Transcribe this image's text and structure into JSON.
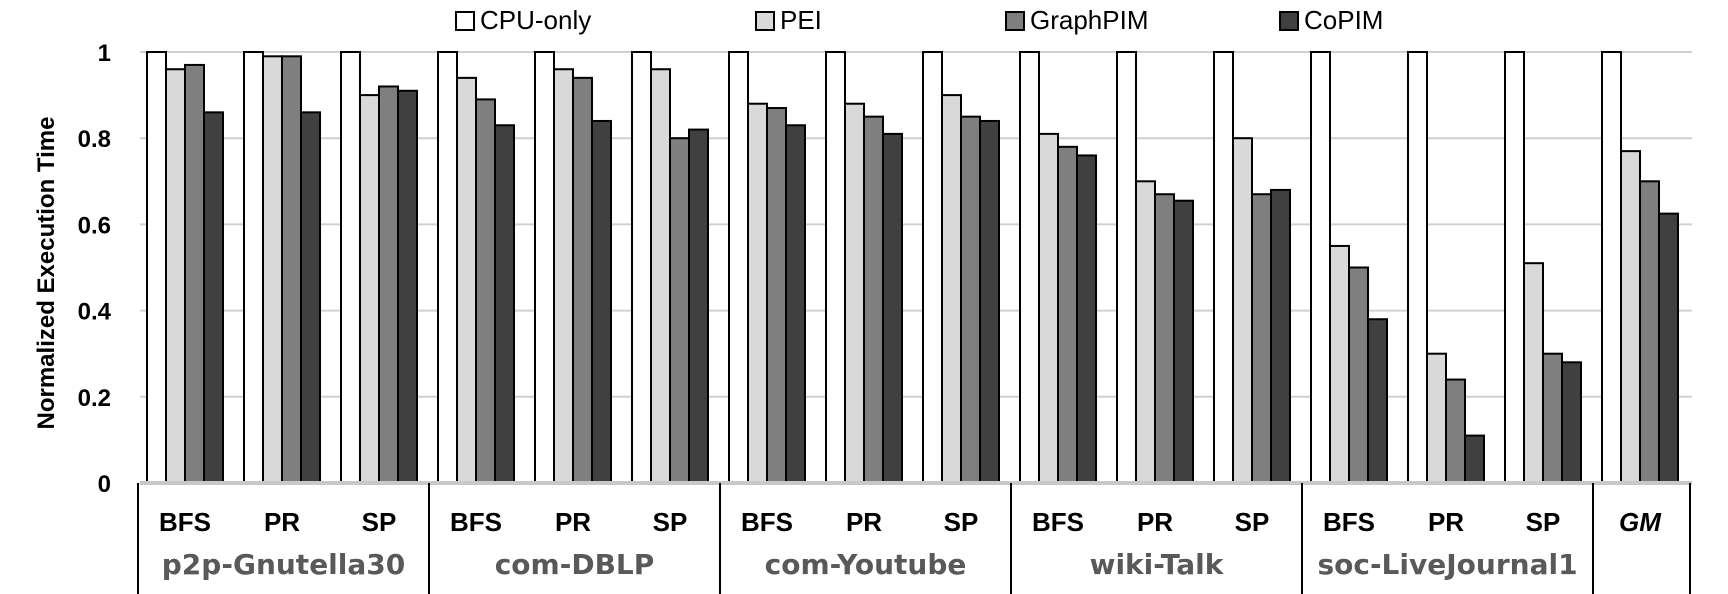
{
  "chart_data": {
    "type": "bar",
    "title": "",
    "xlabel": "",
    "ylabel": "Normalized Execution Time",
    "ylim": [
      0,
      1
    ],
    "yticks": [
      "0",
      "0.2",
      "0.4",
      "0.6",
      "0.8",
      "1"
    ],
    "grid": true,
    "legend_position": "top",
    "groups": [
      {
        "name": "p2p-Gnutella30",
        "categories": [
          "BFS",
          "PR",
          "SP"
        ]
      },
      {
        "name": "com-DBLP",
        "categories": [
          "BFS",
          "PR",
          "SP"
        ]
      },
      {
        "name": "com-Youtube",
        "categories": [
          "BFS",
          "PR",
          "SP"
        ]
      },
      {
        "name": "wiki-Talk",
        "categories": [
          "BFS",
          "PR",
          "SP"
        ]
      },
      {
        "name": "soc-LiveJournal1",
        "categories": [
          "BFS",
          "PR",
          "SP"
        ]
      },
      {
        "name": "",
        "categories": [
          "GM"
        ]
      }
    ],
    "series": [
      {
        "name": "CPU-only",
        "color": "#ffffff",
        "values": [
          1,
          1,
          1,
          1,
          1,
          1,
          1,
          1,
          1,
          1,
          1,
          1,
          1,
          1,
          1,
          1
        ]
      },
      {
        "name": "PEI",
        "color": "#d9d9d9",
        "values": [
          0.96,
          0.99,
          0.9,
          0.94,
          0.96,
          0.96,
          0.88,
          0.88,
          0.9,
          0.81,
          0.7,
          0.8,
          0.55,
          0.3,
          0.51,
          0.77
        ]
      },
      {
        "name": "GraphPIM",
        "color": "#7f7f7f",
        "values": [
          0.97,
          0.99,
          0.92,
          0.89,
          0.94,
          0.8,
          0.87,
          0.85,
          0.85,
          0.78,
          0.67,
          0.67,
          0.5,
          0.24,
          0.3,
          0.7
        ]
      },
      {
        "name": "CoPIM",
        "color": "#404040",
        "values": [
          0.86,
          0.86,
          0.91,
          0.83,
          0.84,
          0.82,
          0.83,
          0.81,
          0.84,
          0.76,
          0.655,
          0.68,
          0.38,
          0.11,
          0.28,
          0.625
        ]
      }
    ]
  }
}
